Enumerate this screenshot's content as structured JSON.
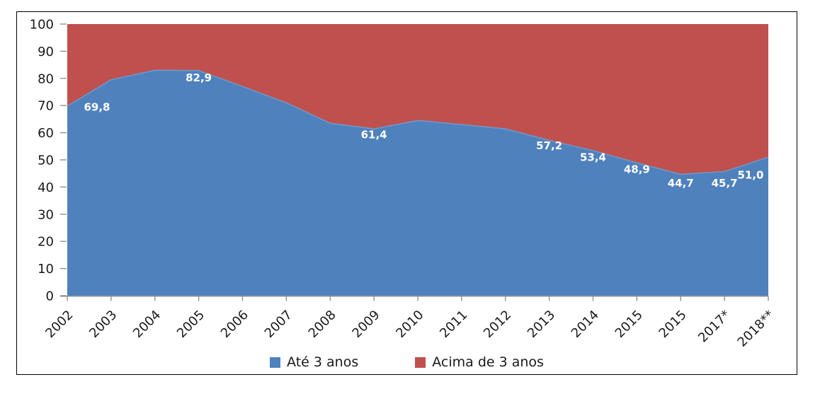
{
  "chart_data": {
    "type": "area",
    "stacking": "percent",
    "title": "",
    "xlabel": "",
    "ylabel": "",
    "categories": [
      "2002",
      "2003",
      "2004",
      "2005",
      "2006",
      "2007",
      "2008",
      "2009",
      "2010",
      "2011",
      "2012",
      "2013",
      "2014",
      "2015",
      "2015",
      "2017*",
      "2018**"
    ],
    "series": [
      {
        "name": "Até 3 anos",
        "color": "#4F81BD",
        "values": [
          69.8,
          79.5,
          83.0,
          82.9,
          77.0,
          71.0,
          63.5,
          61.4,
          64.5,
          63.0,
          61.4,
          57.2,
          53.4,
          48.9,
          44.7,
          45.7,
          51.0
        ]
      },
      {
        "name": "Acima de 3 anos",
        "color": "#C0504D",
        "values": [
          30.2,
          20.5,
          17.0,
          17.1,
          23.0,
          29.0,
          36.5,
          38.6,
          35.5,
          37.0,
          38.6,
          42.8,
          46.6,
          51.1,
          55.3,
          54.3,
          49.0
        ]
      }
    ],
    "data_labels": [
      {
        "index": 0,
        "category": "2002",
        "text": "69,8"
      },
      {
        "index": 3,
        "category": "2005",
        "text": "82,9"
      },
      {
        "index": 7,
        "category": "2009",
        "text": "61,4"
      },
      {
        "index": 11,
        "category": "2013",
        "text": "57,2"
      },
      {
        "index": 12,
        "category": "2014",
        "text": "53,4"
      },
      {
        "index": 13,
        "category": "2015",
        "text": "48,9"
      },
      {
        "index": 14,
        "category": "2015",
        "text": "44,7"
      },
      {
        "index": 15,
        "category": "2017*",
        "text": "45,7"
      },
      {
        "index": 16,
        "category": "2018**",
        "text": "51,0"
      }
    ],
    "ylim": [
      0,
      100
    ],
    "yticks": [
      "0",
      "10",
      "20",
      "30",
      "40",
      "50",
      "60",
      "70",
      "80",
      "90",
      "100"
    ],
    "grid": false,
    "legend_position": "bottom",
    "colors": {
      "data_label_text": "#FFFFFF",
      "axis_line": "#898989",
      "tick_text": "#1a1a1a",
      "frame_border": "#000000",
      "boundary_edge": "#7096C8"
    }
  }
}
